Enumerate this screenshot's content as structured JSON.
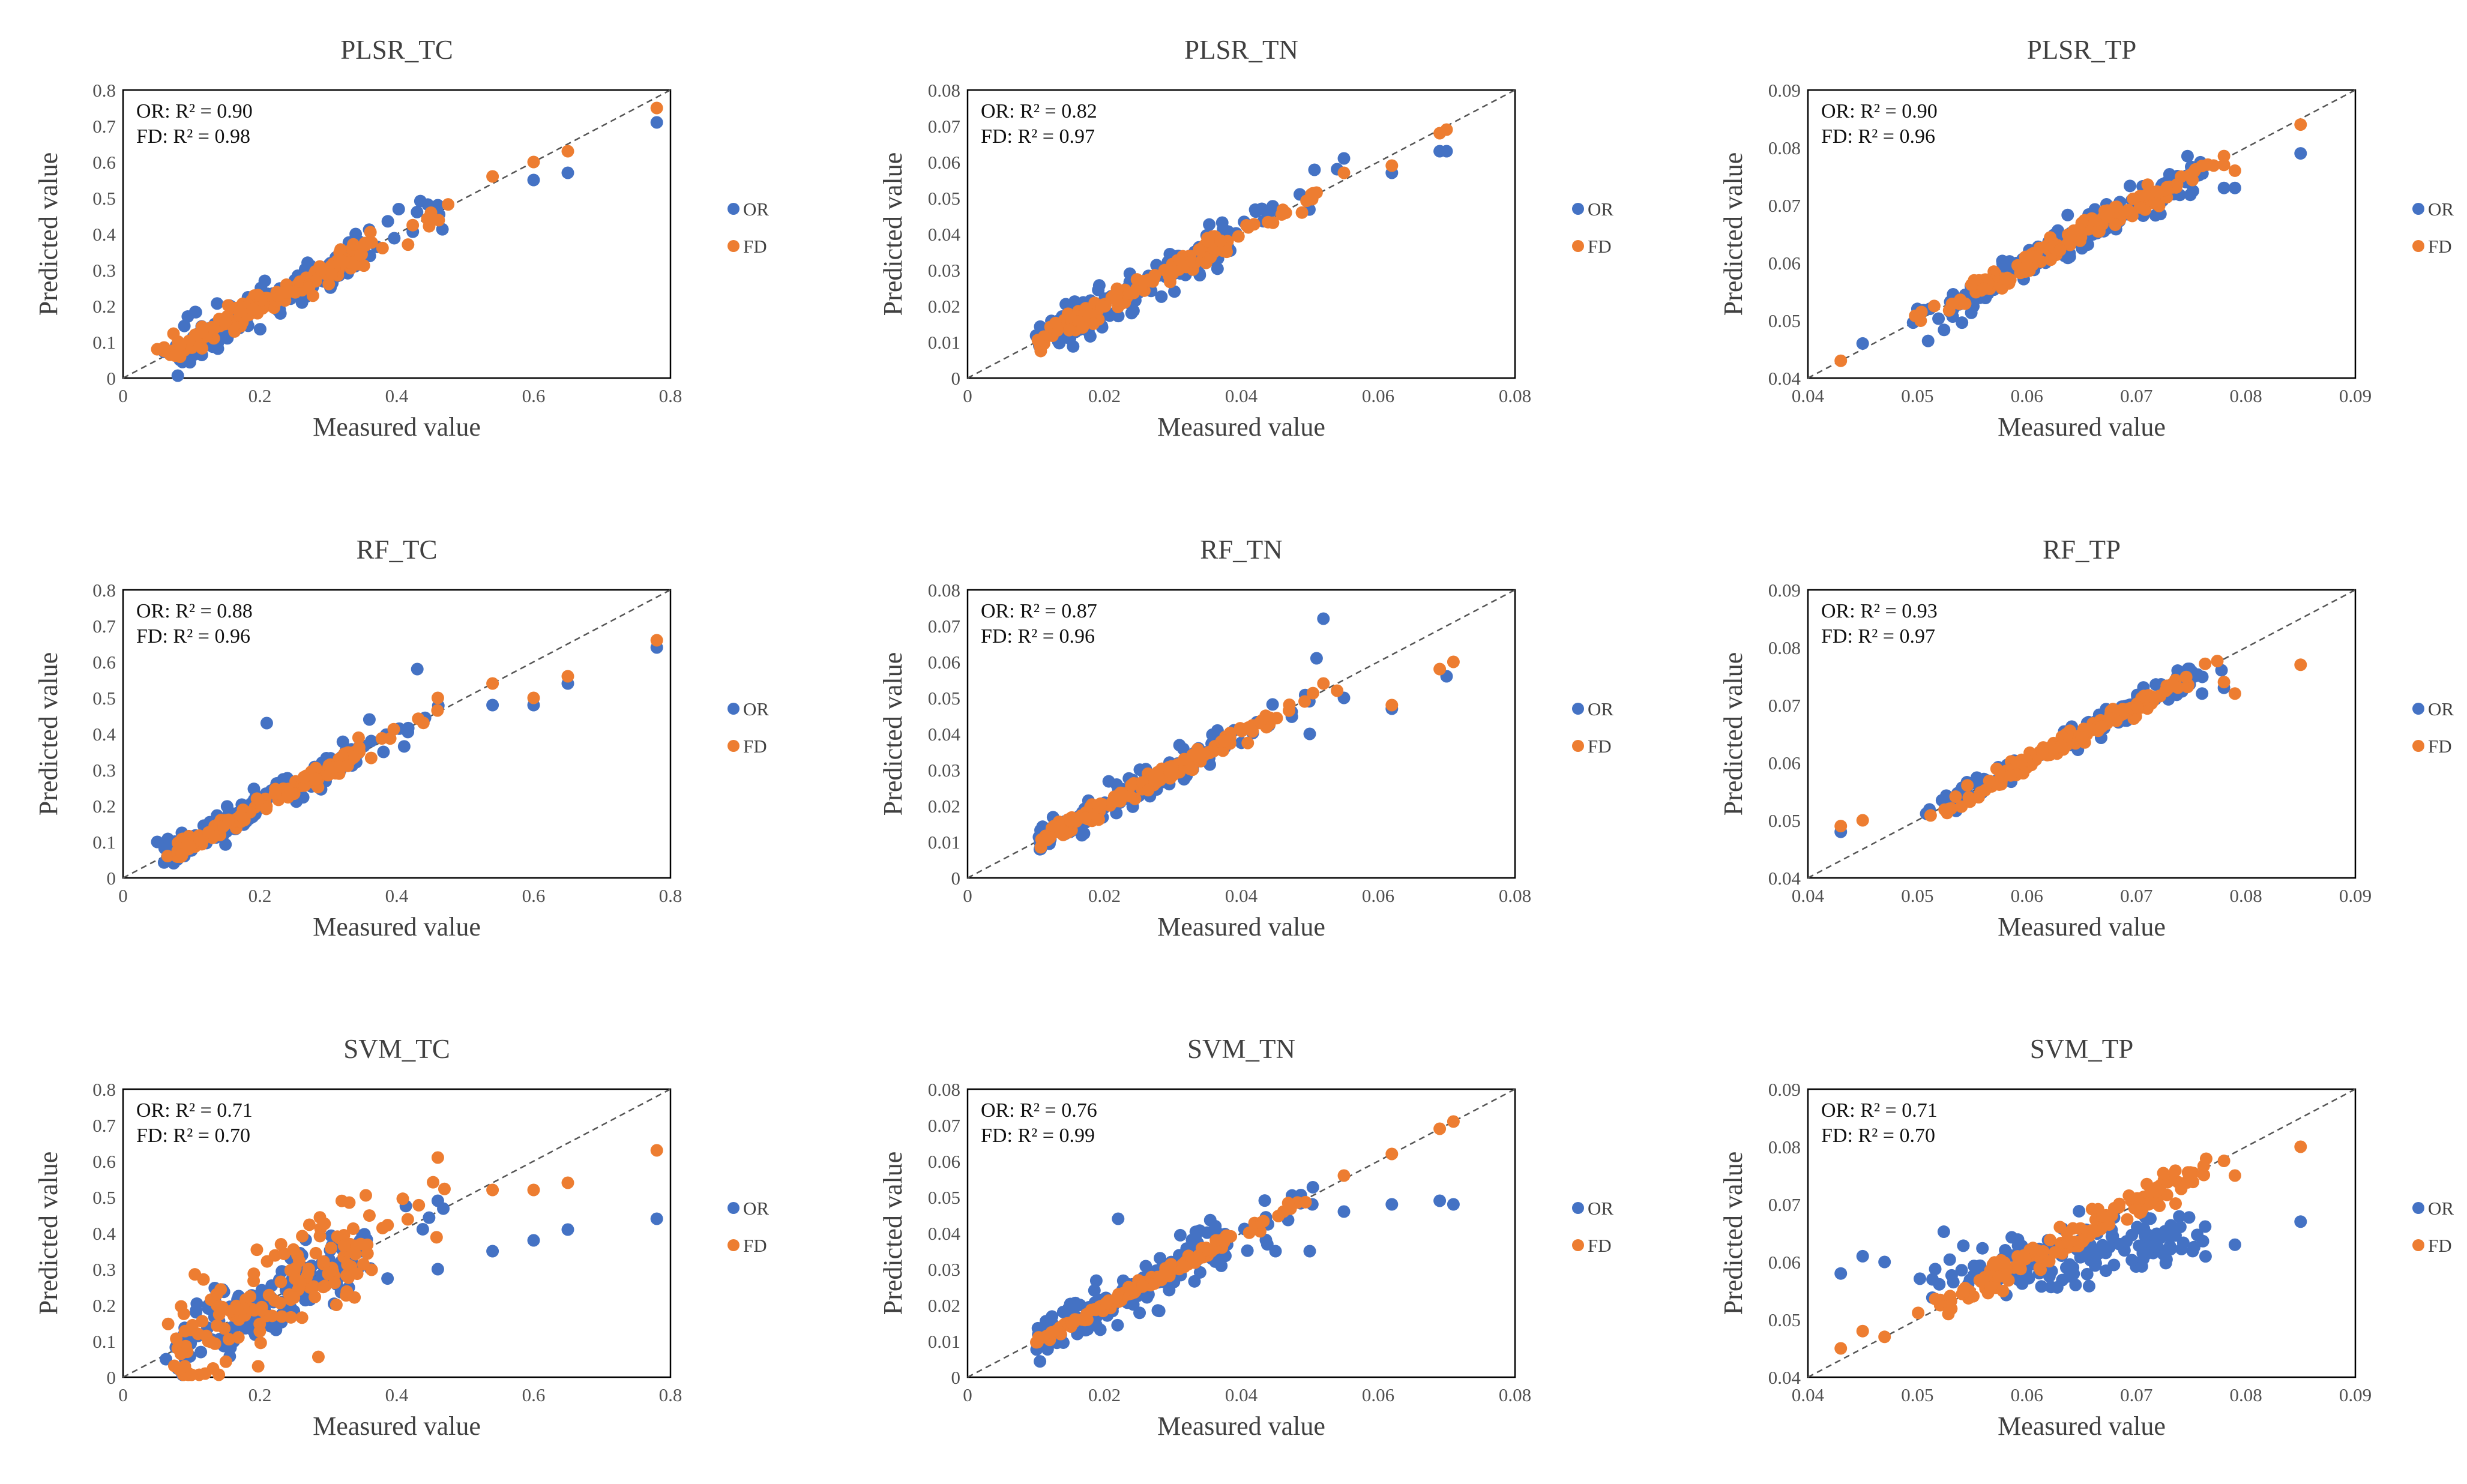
{
  "figure": {
    "colors": {
      "OR": "#4472C4",
      "FD": "#ED7D31"
    },
    "legend_labels": [
      "OR",
      "FD"
    ]
  },
  "chart_data": [
    {
      "type": "scatter",
      "title": "PLSR_TC",
      "xlabel": "Measured value",
      "ylabel": "Predicted value",
      "xlim": [
        0,
        0.8
      ],
      "ylim": [
        0,
        0.8
      ],
      "xticks": [
        "0",
        "0.2",
        "0.4",
        "0.6",
        "0.8"
      ],
      "yticks": [
        "0",
        "0.1",
        "0.2",
        "0.3",
        "0.4",
        "0.5",
        "0.6",
        "0.7",
        "0.8"
      ],
      "annotation": {
        "OR": "OR:  R² = 0.90",
        "FD": "FD:  R² = 0.98"
      },
      "series": [
        {
          "name": "OR",
          "seed": 11,
          "kind": "tc",
          "noise": 0.032,
          "n": 150,
          "outliers": [
            [
              0.08,
              0.0
            ],
            [
              0.78,
              0.71
            ],
            [
              0.65,
              0.57
            ],
            [
              0.6,
              0.55
            ],
            [
              0.46,
              0.48
            ],
            [
              0.34,
              0.4
            ]
          ]
        },
        {
          "name": "FD",
          "seed": 12,
          "kind": "tc",
          "noise": 0.018,
          "n": 150,
          "outliers": [
            [
              0.78,
              0.75
            ],
            [
              0.65,
              0.63
            ],
            [
              0.6,
              0.6
            ],
            [
              0.54,
              0.56
            ],
            [
              0.05,
              0.08
            ]
          ]
        }
      ]
    },
    {
      "type": "scatter",
      "title": "PLSR_TN",
      "xlabel": "Measured value",
      "ylabel": "Predicted value",
      "xlim": [
        0,
        0.08
      ],
      "ylim": [
        0,
        0.08
      ],
      "xticks": [
        "0",
        "0.02",
        "0.04",
        "0.06",
        "0.08"
      ],
      "yticks": [
        "0",
        "0.01",
        "0.02",
        "0.03",
        "0.04",
        "0.05",
        "0.06",
        "0.07",
        "0.08"
      ],
      "annotation": {
        "OR": "OR:  R² = 0.82",
        "FD": "FD:  R² = 0.97"
      },
      "series": [
        {
          "name": "OR",
          "seed": 21,
          "kind": "tn",
          "noise": 0.0032,
          "n": 150,
          "outliers": [
            [
              0.07,
              0.063
            ],
            [
              0.069,
              0.063
            ],
            [
              0.062,
              0.057
            ],
            [
              0.055,
              0.061
            ],
            [
              0.054,
              0.058
            ],
            [
              0.043,
              0.047
            ]
          ]
        },
        {
          "name": "FD",
          "seed": 22,
          "kind": "tn",
          "noise": 0.0015,
          "n": 150,
          "outliers": [
            [
              0.07,
              0.069
            ],
            [
              0.069,
              0.068
            ],
            [
              0.062,
              0.059
            ],
            [
              0.055,
              0.057
            ]
          ]
        }
      ]
    },
    {
      "type": "scatter",
      "title": "PLSR_TP",
      "xlabel": "Measured value",
      "ylabel": "Predicted value",
      "xlim": [
        0.04,
        0.09
      ],
      "ylim": [
        0.04,
        0.09
      ],
      "xticks": [
        "0.04",
        "0.05",
        "0.06",
        "0.07",
        "0.08",
        "0.09"
      ],
      "yticks": [
        "0.04",
        "0.05",
        "0.06",
        "0.07",
        "0.08",
        "0.09"
      ],
      "annotation": {
        "OR": "OR:  R² = 0.90",
        "FD": "FD:  R² = 0.96"
      },
      "series": [
        {
          "name": "OR",
          "seed": 31,
          "kind": "tp",
          "noise": 0.0018,
          "n": 150,
          "outliers": [
            [
              0.085,
              0.079
            ],
            [
              0.079,
              0.073
            ],
            [
              0.078,
              0.073
            ],
            [
              0.045,
              0.046
            ],
            [
              0.05,
              0.052
            ]
          ]
        },
        {
          "name": "FD",
          "seed": 32,
          "kind": "tp",
          "noise": 0.0009,
          "n": 150,
          "outliers": [
            [
              0.085,
              0.084
            ],
            [
              0.043,
              0.043
            ],
            [
              0.078,
              0.077
            ],
            [
              0.079,
              0.076
            ]
          ]
        }
      ]
    },
    {
      "type": "scatter",
      "title": "RF_TC",
      "xlabel": "Measured value",
      "ylabel": "Predicted value",
      "xlim": [
        0,
        0.8
      ],
      "ylim": [
        0,
        0.8
      ],
      "xticks": [
        "0",
        "0.2",
        "0.4",
        "0.6",
        "0.8"
      ],
      "yticks": [
        "0",
        "0.1",
        "0.2",
        "0.3",
        "0.4",
        "0.5",
        "0.6",
        "0.7",
        "0.8"
      ],
      "annotation": {
        "OR": "OR:  R² = 0.88",
        "FD": "FD:  R² = 0.96"
      },
      "series": [
        {
          "name": "OR",
          "seed": 41,
          "kind": "tc",
          "noise": 0.022,
          "n": 150,
          "outliers": [
            [
              0.21,
              0.43
            ],
            [
              0.43,
              0.58
            ],
            [
              0.36,
              0.44
            ],
            [
              0.78,
              0.64
            ],
            [
              0.65,
              0.54
            ],
            [
              0.6,
              0.48
            ],
            [
              0.54,
              0.48
            ],
            [
              0.05,
              0.1
            ]
          ]
        },
        {
          "name": "FD",
          "seed": 42,
          "kind": "tc",
          "noise": 0.014,
          "n": 150,
          "outliers": [
            [
              0.78,
              0.66
            ],
            [
              0.65,
              0.56
            ],
            [
              0.6,
              0.5
            ],
            [
              0.54,
              0.54
            ],
            [
              0.46,
              0.5
            ]
          ]
        }
      ]
    },
    {
      "type": "scatter",
      "title": "RF_TN",
      "xlabel": "Measured value",
      "ylabel": "Predicted value",
      "xlim": [
        0,
        0.08
      ],
      "ylim": [
        0,
        0.08
      ],
      "xticks": [
        "0",
        "0.02",
        "0.04",
        "0.06",
        "0.08"
      ],
      "yticks": [
        "0",
        "0.01",
        "0.02",
        "0.03",
        "0.04",
        "0.05",
        "0.06",
        "0.07",
        "0.08"
      ],
      "annotation": {
        "OR": "OR:  R² = 0.87",
        "FD": "FD:  R² = 0.96"
      },
      "series": [
        {
          "name": "OR",
          "seed": 51,
          "kind": "tn",
          "noise": 0.0022,
          "n": 150,
          "outliers": [
            [
              0.052,
              0.072
            ],
            [
              0.051,
              0.061
            ],
            [
              0.07,
              0.056
            ],
            [
              0.062,
              0.047
            ],
            [
              0.055,
              0.05
            ],
            [
              0.05,
              0.04
            ]
          ]
        },
        {
          "name": "FD",
          "seed": 52,
          "kind": "tn",
          "noise": 0.0012,
          "n": 150,
          "outliers": [
            [
              0.071,
              0.06
            ],
            [
              0.069,
              0.058
            ],
            [
              0.062,
              0.048
            ],
            [
              0.054,
              0.052
            ],
            [
              0.052,
              0.054
            ]
          ]
        }
      ]
    },
    {
      "type": "scatter",
      "title": "RF_TP",
      "xlabel": "Measured value",
      "ylabel": "Predicted value",
      "xlim": [
        0.04,
        0.09
      ],
      "ylim": [
        0.04,
        0.09
      ],
      "xticks": [
        "0.04",
        "0.05",
        "0.06",
        "0.07",
        "0.08",
        "0.09"
      ],
      "yticks": [
        "0.04",
        "0.05",
        "0.06",
        "0.07",
        "0.08",
        "0.09"
      ],
      "annotation": {
        "OR": "OR:  R² = 0.93",
        "FD": "FD:  R² = 0.97"
      },
      "series": [
        {
          "name": "OR",
          "seed": 61,
          "kind": "tprf",
          "noise": 0.0011,
          "n": 150,
          "outliers": [
            [
              0.043,
              0.048
            ],
            [
              0.078,
              0.073
            ],
            [
              0.076,
              0.072
            ]
          ]
        },
        {
          "name": "FD",
          "seed": 62,
          "kind": "tprf",
          "noise": 0.0007,
          "n": 150,
          "outliers": [
            [
              0.085,
              0.077
            ],
            [
              0.043,
              0.049
            ],
            [
              0.045,
              0.05
            ],
            [
              0.079,
              0.072
            ],
            [
              0.078,
              0.074
            ]
          ]
        }
      ]
    },
    {
      "type": "scatter",
      "title": "SVM_TC",
      "xlabel": "Measured value",
      "ylabel": "Predicted value",
      "xlim": [
        0,
        0.8
      ],
      "ylim": [
        0,
        0.8
      ],
      "xticks": [
        "0",
        "0.2",
        "0.4",
        "0.6",
        "0.8"
      ],
      "yticks": [
        "0",
        "0.1",
        "0.2",
        "0.3",
        "0.4",
        "0.5",
        "0.6",
        "0.7",
        "0.8"
      ],
      "annotation": {
        "OR": "OR:  R² = 0.71",
        "FD": "FD:  R² = 0.70"
      },
      "series": [
        {
          "name": "OR",
          "seed": 71,
          "kind": "tc",
          "noise": 0.045,
          "n": 150,
          "outliers": [
            [
              0.78,
              0.44
            ],
            [
              0.65,
              0.41
            ],
            [
              0.6,
              0.38
            ],
            [
              0.54,
              0.35
            ],
            [
              0.46,
              0.3
            ],
            [
              0.46,
              0.49
            ]
          ]
        },
        {
          "name": "FD",
          "seed": 72,
          "kind": "svmtc",
          "noise": 0.07,
          "n": 150,
          "outliers": [
            [
              0.78,
              0.63
            ],
            [
              0.65,
              0.54
            ],
            [
              0.6,
              0.52
            ],
            [
              0.54,
              0.52
            ],
            [
              0.46,
              0.61
            ],
            [
              0.1,
              0.0
            ],
            [
              0.12,
              0.01
            ],
            [
              0.14,
              0.0
            ]
          ]
        }
      ]
    },
    {
      "type": "scatter",
      "title": "SVM_TN",
      "xlabel": "Measured value",
      "ylabel": "Predicted value",
      "xlim": [
        0,
        0.08
      ],
      "ylim": [
        0,
        0.08
      ],
      "xticks": [
        "0",
        "0.02",
        "0.04",
        "0.06",
        "0.08"
      ],
      "yticks": [
        "0",
        "0.01",
        "0.02",
        "0.03",
        "0.04",
        "0.05",
        "0.06",
        "0.07",
        "0.08"
      ],
      "annotation": {
        "OR": "OR:  R² = 0.76",
        "FD": "FD:  R² = 0.99"
      },
      "series": [
        {
          "name": "OR",
          "seed": 81,
          "kind": "tn",
          "noise": 0.0035,
          "n": 150,
          "outliers": [
            [
              0.071,
              0.048
            ],
            [
              0.069,
              0.049
            ],
            [
              0.062,
              0.048
            ],
            [
              0.055,
              0.046
            ],
            [
              0.05,
              0.035
            ],
            [
              0.045,
              0.035
            ],
            [
              0.022,
              0.044
            ]
          ]
        },
        {
          "name": "FD",
          "seed": 82,
          "kind": "tn",
          "noise": 0.0008,
          "n": 150,
          "outliers": [
            [
              0.071,
              0.071
            ],
            [
              0.069,
              0.069
            ],
            [
              0.062,
              0.062
            ],
            [
              0.055,
              0.056
            ]
          ]
        }
      ]
    },
    {
      "type": "scatter",
      "title": "SVM_TP",
      "xlabel": "Measured value",
      "ylabel": "Predicted value",
      "xlim": [
        0.04,
        0.09
      ],
      "ylim": [
        0.04,
        0.09
      ],
      "xticks": [
        "0.04",
        "0.05",
        "0.06",
        "0.07",
        "0.08",
        "0.09"
      ],
      "yticks": [
        "0.04",
        "0.05",
        "0.06",
        "0.07",
        "0.08",
        "0.09"
      ],
      "annotation": {
        "OR": "OR:  R² = 0.71",
        "FD": "FD:  R² = 0.70"
      },
      "series": [
        {
          "name": "OR",
          "seed": 91,
          "kind": "svmtp",
          "noise": 0.0025,
          "n": 150,
          "outliers": [
            [
              0.043,
              0.058
            ],
            [
              0.045,
              0.061
            ],
            [
              0.047,
              0.06
            ],
            [
              0.085,
              0.067
            ],
            [
              0.079,
              0.063
            ]
          ]
        },
        {
          "name": "FD",
          "seed": 92,
          "kind": "tp",
          "noise": 0.0014,
          "n": 150,
          "outliers": [
            [
              0.085,
              0.08
            ],
            [
              0.043,
              0.045
            ],
            [
              0.045,
              0.048
            ],
            [
              0.047,
              0.047
            ],
            [
              0.079,
              0.075
            ]
          ]
        }
      ]
    }
  ]
}
